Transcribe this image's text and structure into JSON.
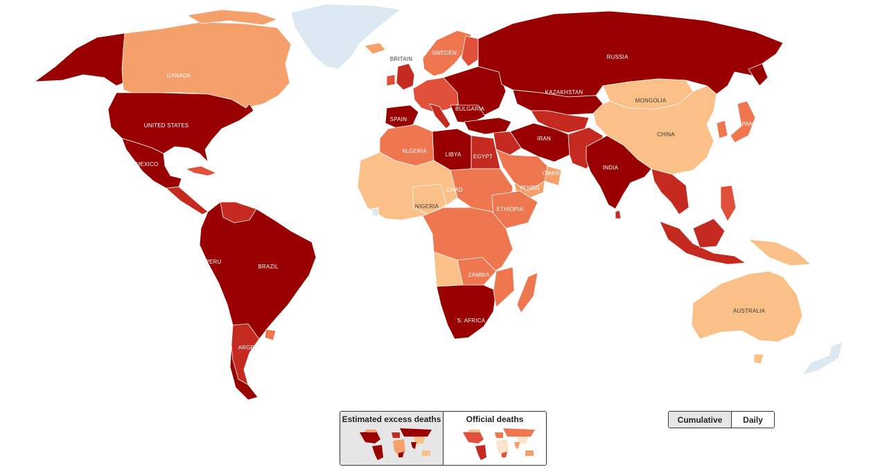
{
  "colors": {
    "very_high": "#990000",
    "high": "#c42a1f",
    "medium_high": "#e0503a",
    "medium": "#ee7750",
    "low": "#f5a06a",
    "very_low": "#fac088",
    "no_data": "#dde9f2"
  },
  "map_labels": {
    "canada": "CANADA",
    "united_states": "UNITED STATES",
    "mexico": "MEXICO",
    "peru": "PERU",
    "brazil": "BRAZIL",
    "argentina": "ARGENTINA",
    "britain": "BRITAIN",
    "sweden": "SWEDEN",
    "spain": "SPAIN",
    "bulgaria": "BULGARIA",
    "russia": "RUSSIA",
    "kazakhstan": "KAZAKHSTAN",
    "mongolia": "MONGOLIA",
    "china": "CHINA",
    "japan": "JAPAN",
    "iran": "IRAN",
    "india": "INDIA",
    "oman": "OMAN",
    "yemen": "YEMEN",
    "algeria": "ALGERIA",
    "libya": "LIBYA",
    "egypt": "EGYPT",
    "chad": "CHAD",
    "nigeria": "NIGERIA",
    "ethiopia": "ETHIOPIA",
    "zambia": "ZAMBIA",
    "s_africa": "S. AFRICA",
    "australia": "AUSTRALIA"
  },
  "view_toggle": {
    "estimated_label": "Estimated excess deaths",
    "official_label": "Official deaths",
    "active": "estimated"
  },
  "mode_toggle": {
    "cumulative_label": "Cumulative",
    "daily_label": "Daily",
    "active": "cumulative"
  }
}
